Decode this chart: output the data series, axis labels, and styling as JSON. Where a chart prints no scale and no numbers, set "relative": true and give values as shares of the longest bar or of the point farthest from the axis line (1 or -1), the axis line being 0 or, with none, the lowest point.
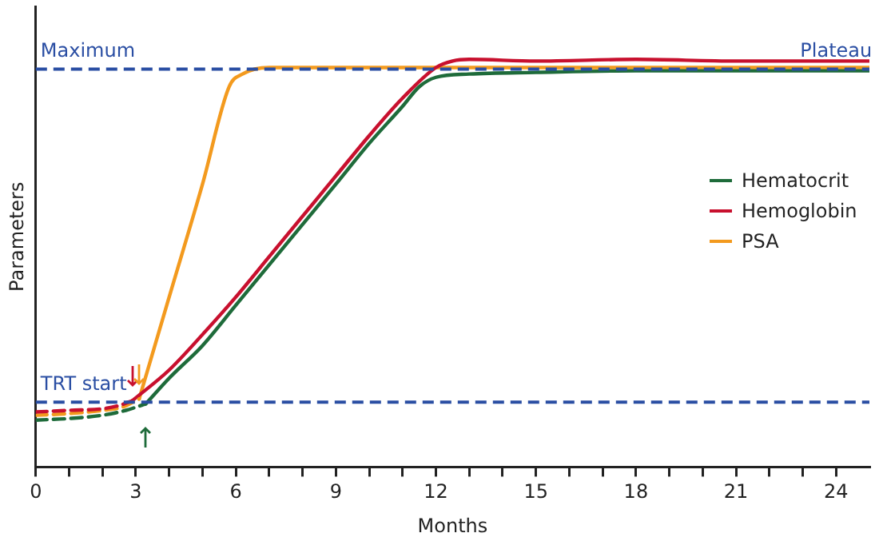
{
  "chart_data": {
    "type": "line",
    "relative": true,
    "xlabel": "Months",
    "ylabel": "Parameters",
    "xlim": [
      0,
      25
    ],
    "xticks": [
      0,
      {
        "value": 1,
        "label": null
      },
      {
        "value": 2,
        "label": null
      },
      3,
      {
        "value": 4,
        "label": null
      },
      {
        "value": 5,
        "label": null
      },
      6,
      {
        "value": 7,
        "label": null
      },
      {
        "value": 8,
        "label": null
      },
      9,
      {
        "value": 10,
        "label": null
      },
      {
        "value": 11,
        "label": null
      },
      12,
      {
        "value": 13,
        "label": null
      },
      {
        "value": 14,
        "label": null
      },
      15,
      {
        "value": 16,
        "label": null
      },
      {
        "value": 17,
        "label": null
      },
      18,
      {
        "value": 19,
        "label": null
      },
      {
        "value": 20,
        "label": null
      },
      21,
      {
        "value": 22,
        "label": null
      },
      {
        "value": 23,
        "label": null
      },
      24
    ],
    "grid": false,
    "legend": "right",
    "marker": "none",
    "series": [
      {
        "color": "#1e6b3a",
        "line_style": "dashed",
        "x": [
          0,
          1,
          2,
          2.7,
          3.3
        ],
        "values": [
          0.115,
          0.119,
          0.127,
          0.139,
          0.155
        ]
      },
      {
        "color": "#c8102e",
        "line_style": "dashed",
        "x": [
          0,
          1,
          2,
          2.5,
          2.9
        ],
        "values": [
          0.135,
          0.139,
          0.143,
          0.151,
          0.163
        ]
      },
      {
        "color": "#f39a1e",
        "line_style": "dashed",
        "x": [
          0,
          1,
          2,
          2.6,
          3.1
        ],
        "values": [
          0.127,
          0.131,
          0.139,
          0.147,
          0.167
        ]
      },
      {
        "name": "Hematocrit",
        "color": "#1e6b3a",
        "line_style": "solid",
        "x": [
          3.3,
          4,
          5,
          6,
          7,
          8,
          9,
          10,
          11,
          11.5,
          12,
          13,
          15,
          18,
          21,
          25
        ],
        "values": [
          0.155,
          0.218,
          0.298,
          0.397,
          0.496,
          0.595,
          0.694,
          0.794,
          0.885,
          0.933,
          0.956,
          0.964,
          0.968,
          0.972,
          0.972,
          0.972
        ]
      },
      {
        "name": "Hemoglobin",
        "color": "#c8102e",
        "line_style": "solid",
        "x": [
          2.9,
          4,
          5,
          6,
          7,
          8,
          9,
          10,
          11,
          12,
          12.5,
          13,
          15,
          18,
          21,
          25
        ],
        "values": [
          0.163,
          0.238,
          0.325,
          0.417,
          0.516,
          0.615,
          0.714,
          0.813,
          0.905,
          0.98,
          0.996,
          1.0,
          0.996,
          1.0,
          0.996,
          0.996
        ]
      },
      {
        "name": "PSA",
        "color": "#f39a1e",
        "line_style": "solid",
        "x": [
          3.1,
          4,
          5,
          5.8,
          6.2,
          7,
          9,
          12,
          15,
          18,
          21,
          25
        ],
        "values": [
          0.167,
          0.417,
          0.694,
          0.933,
          0.964,
          0.98,
          0.98,
          0.98,
          0.98,
          0.98,
          0.98,
          0.98
        ]
      }
    ],
    "ref_lines": [
      {
        "axis": "y",
        "value": 0.976,
        "label": "Maximum",
        "color": "#2a4ea3",
        "line_style": "dashed"
      },
      {
        "axis": "y",
        "value": 0.159,
        "label": "TRT start",
        "color": "#2a4ea3",
        "line_style": "dashed"
      }
    ],
    "annotations": [
      {
        "text": "Plateau",
        "x": 24,
        "y": 0.976
      }
    ]
  }
}
